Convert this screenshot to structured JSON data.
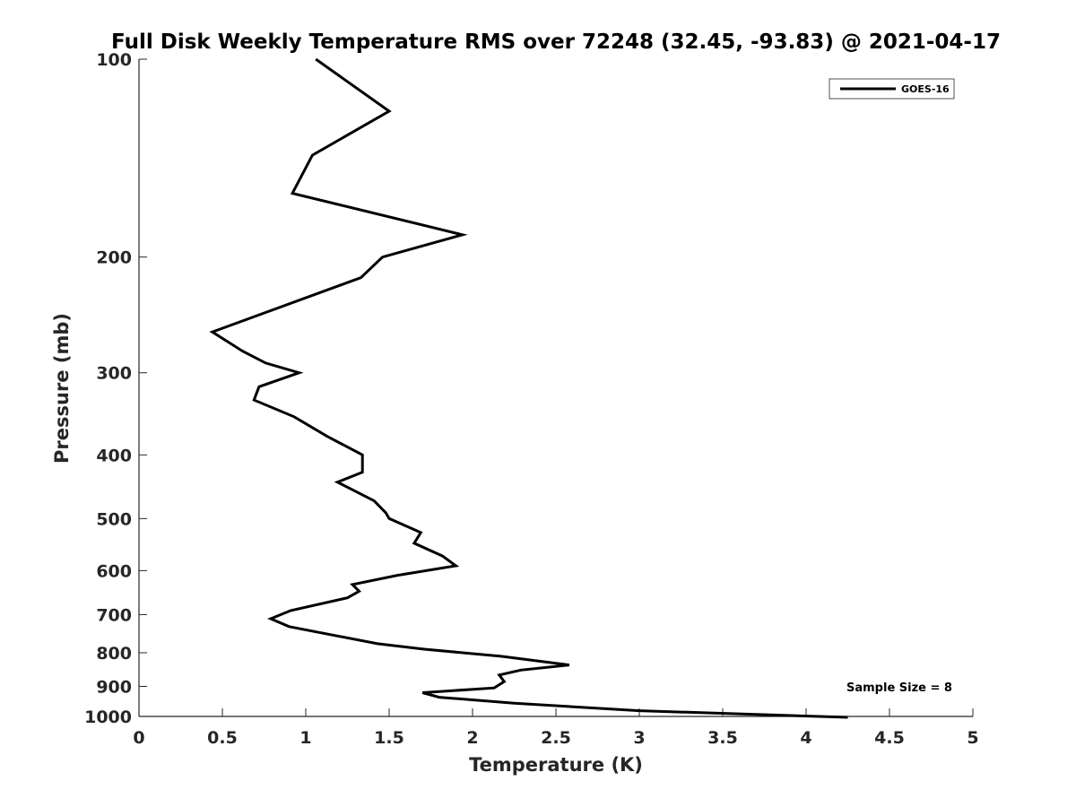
{
  "chart_data": {
    "type": "line",
    "title": "Full Disk Weekly Temperature RMS over 72248 (32.45, -93.83) @ 2021-04-17",
    "xlabel": "Temperature (K)",
    "ylabel": "Pressure (mb)",
    "xlim": [
      0,
      5
    ],
    "ylim": [
      100,
      1000
    ],
    "y_scale": "log",
    "y_reversed": true,
    "x_ticks": [
      0,
      0.5,
      1,
      1.5,
      2,
      2.5,
      3,
      3.5,
      4,
      4.5,
      5
    ],
    "y_ticks": [
      100,
      200,
      300,
      400,
      500,
      600,
      700,
      800,
      900,
      1000
    ],
    "grid": false,
    "legend_position": "top-right",
    "annotation": "Sample Size = 8",
    "line_color": "#000000",
    "series": [
      {
        "name": "GOES-16",
        "x": [
          1.06,
          1.5,
          1.04,
          0.92,
          1.94,
          1.46,
          1.33,
          0.44,
          0.62,
          0.76,
          0.96,
          0.72,
          0.69,
          0.93,
          1.13,
          1.34,
          1.34,
          1.19,
          1.41,
          1.48,
          1.5,
          1.69,
          1.65,
          1.82,
          1.9,
          1.55,
          1.28,
          1.32,
          1.25,
          0.91,
          0.79,
          0.9,
          1.43,
          1.71,
          2.17,
          2.58,
          2.29,
          2.16,
          2.19,
          2.13,
          1.7,
          1.8,
          2.25,
          3.0,
          4.25
        ],
        "y": [
          100,
          120,
          140,
          160,
          185,
          200,
          215,
          260,
          278,
          290,
          300,
          315,
          330,
          350,
          375,
          400,
          425,
          440,
          470,
          490,
          500,
          525,
          545,
          570,
          590,
          610,
          630,
          645,
          660,
          690,
          710,
          730,
          775,
          790,
          810,
          835,
          850,
          865,
          885,
          905,
          920,
          935,
          955,
          980,
          1003
        ]
      }
    ]
  }
}
